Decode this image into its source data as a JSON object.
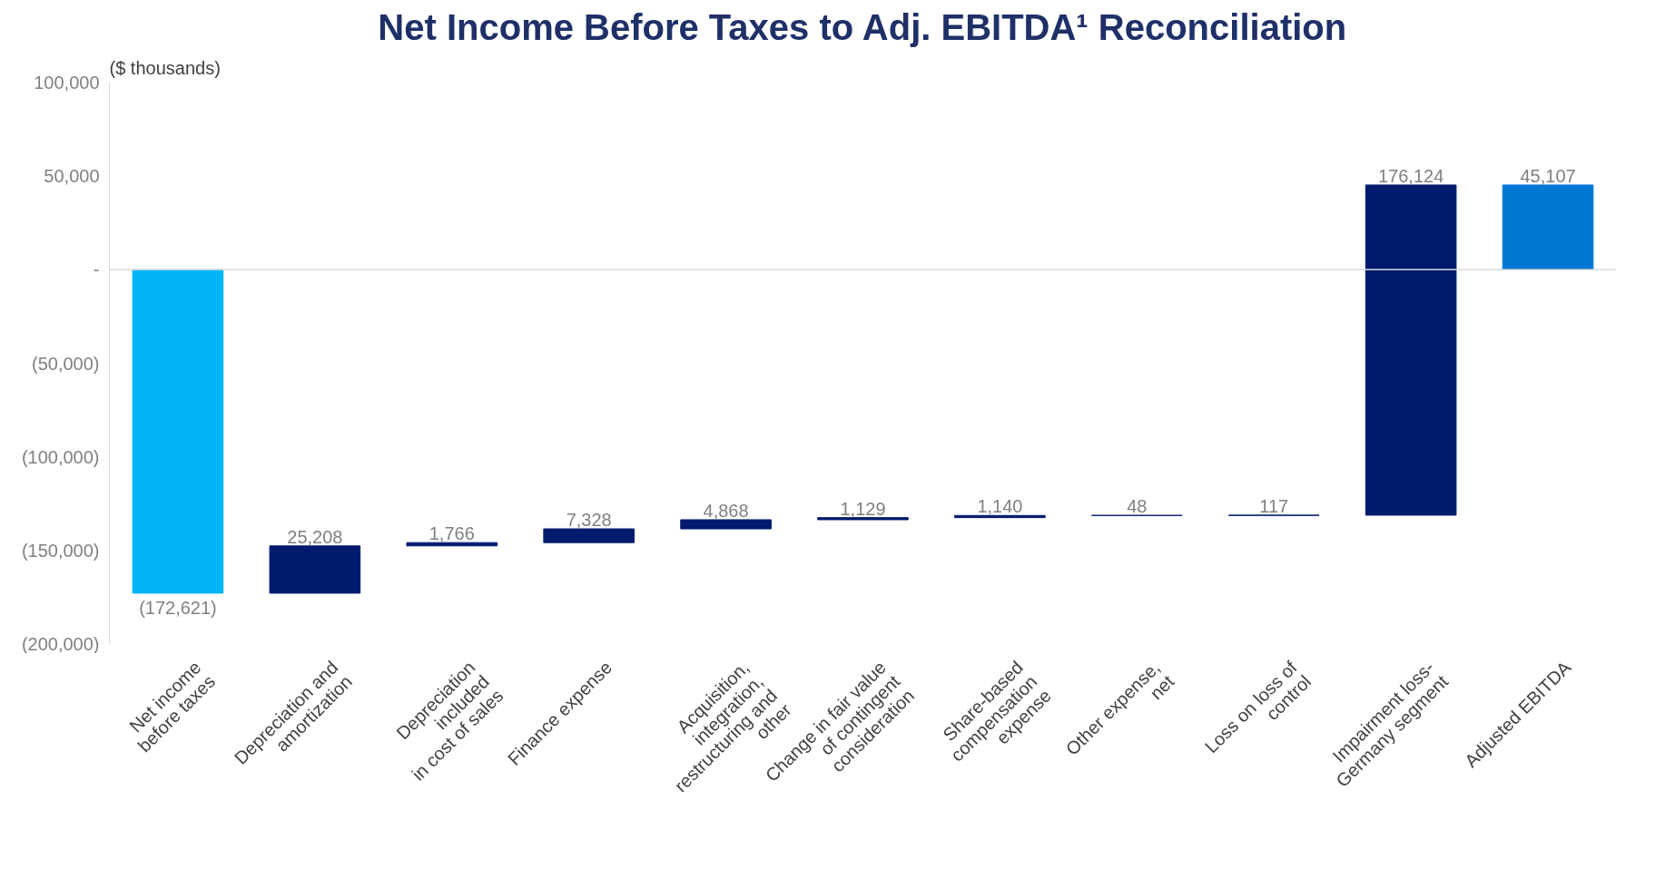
{
  "chart_data": {
    "type": "bar",
    "title": "Net Income Before Taxes to Adj. EBITDA¹ Reconciliation",
    "annotations": [
      "($ thousands)"
    ],
    "categories": [
      "Net income\nbefore taxes",
      "Depreciation and\namortization",
      "Depreciation\nincluded\nin cost of sales",
      "Finance expense",
      "Acquisition,\nintegration,\nrestructuring and\nother",
      "Change in fair value\nof contingent\nconsideration",
      "Share-based\ncompensation\nexpense",
      "Other expense,\nnet",
      "Loss on loss of\ncontrol",
      "Impairment loss-\nGermany segment",
      "Adjusted EBITDA"
    ],
    "values": [
      -172621,
      25208,
      1766,
      7328,
      4868,
      1129,
      1140,
      48,
      117,
      176124,
      45107
    ],
    "base": [
      0,
      -172621,
      -147413,
      -145647,
      -138319,
      -133451,
      -132322,
      -131182,
      -131134,
      -131017,
      0
    ],
    "colors": [
      "#00b4f5",
      "#001a6e",
      "#001a6e",
      "#001a6e",
      "#001a6e",
      "#001a6e",
      "#001a6e",
      "#001a6e",
      "#001a6e",
      "#001a6e",
      "#0078d4"
    ],
    "value_labels": [
      "(172,621)",
      "25,208",
      "1,766",
      "7,328",
      "4,868",
      "1,129",
      "1,140",
      "48",
      "117",
      "176,124",
      "45,107"
    ],
    "ylim": [
      -200000,
      100000
    ],
    "yticks": [
      {
        "value": 100000,
        "label": "100,000"
      },
      {
        "value": 50000,
        "label": "50,000"
      },
      {
        "value": 0,
        "label": "-"
      },
      {
        "value": -50000,
        "label": "(50,000)"
      },
      {
        "value": -100000,
        "label": "(100,000)"
      },
      {
        "value": -150000,
        "label": "(150,000)"
      },
      {
        "value": -200000,
        "label": "(200,000)"
      }
    ],
    "ref_lines": [
      {
        "axis": "y",
        "value": 0,
        "color": "#d9d9d9"
      }
    ],
    "grid": false
  }
}
